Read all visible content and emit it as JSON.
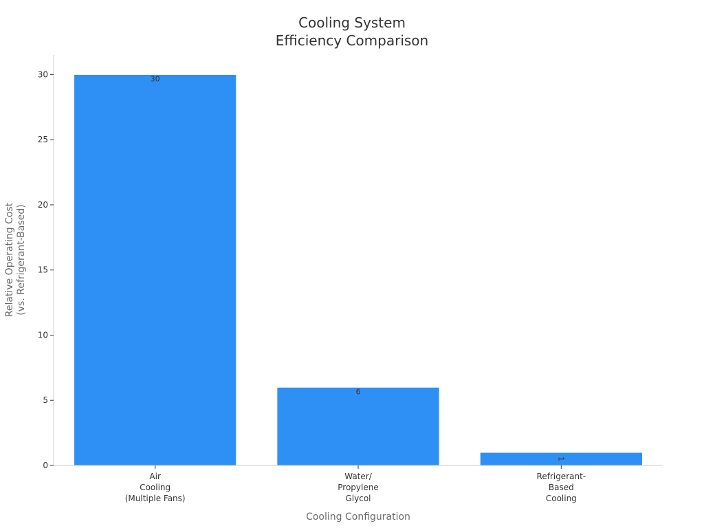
{
  "chart_data": {
    "type": "bar",
    "title_lines": [
      "Cooling System",
      "Efficiency Comparison"
    ],
    "xlabel": "Cooling Configuration",
    "ylabel_lines": [
      "Relative Operating Cost",
      "(vs. Refrigerant-Based)"
    ],
    "categories": [
      [
        "Air",
        "Cooling",
        "(Multiple Fans)"
      ],
      [
        "Water/",
        "Propylene",
        "Glycol"
      ],
      [
        "Refrigerant-",
        "Based",
        "Cooling"
      ]
    ],
    "values": [
      30,
      6,
      1
    ],
    "data_labels": [
      "30",
      "6",
      "1"
    ],
    "ylim": [
      0,
      31.5
    ],
    "yticks": [
      0,
      5,
      10,
      15,
      20,
      25,
      30
    ],
    "bar_color": "#2e90f5",
    "grid": false,
    "legend": "none"
  }
}
